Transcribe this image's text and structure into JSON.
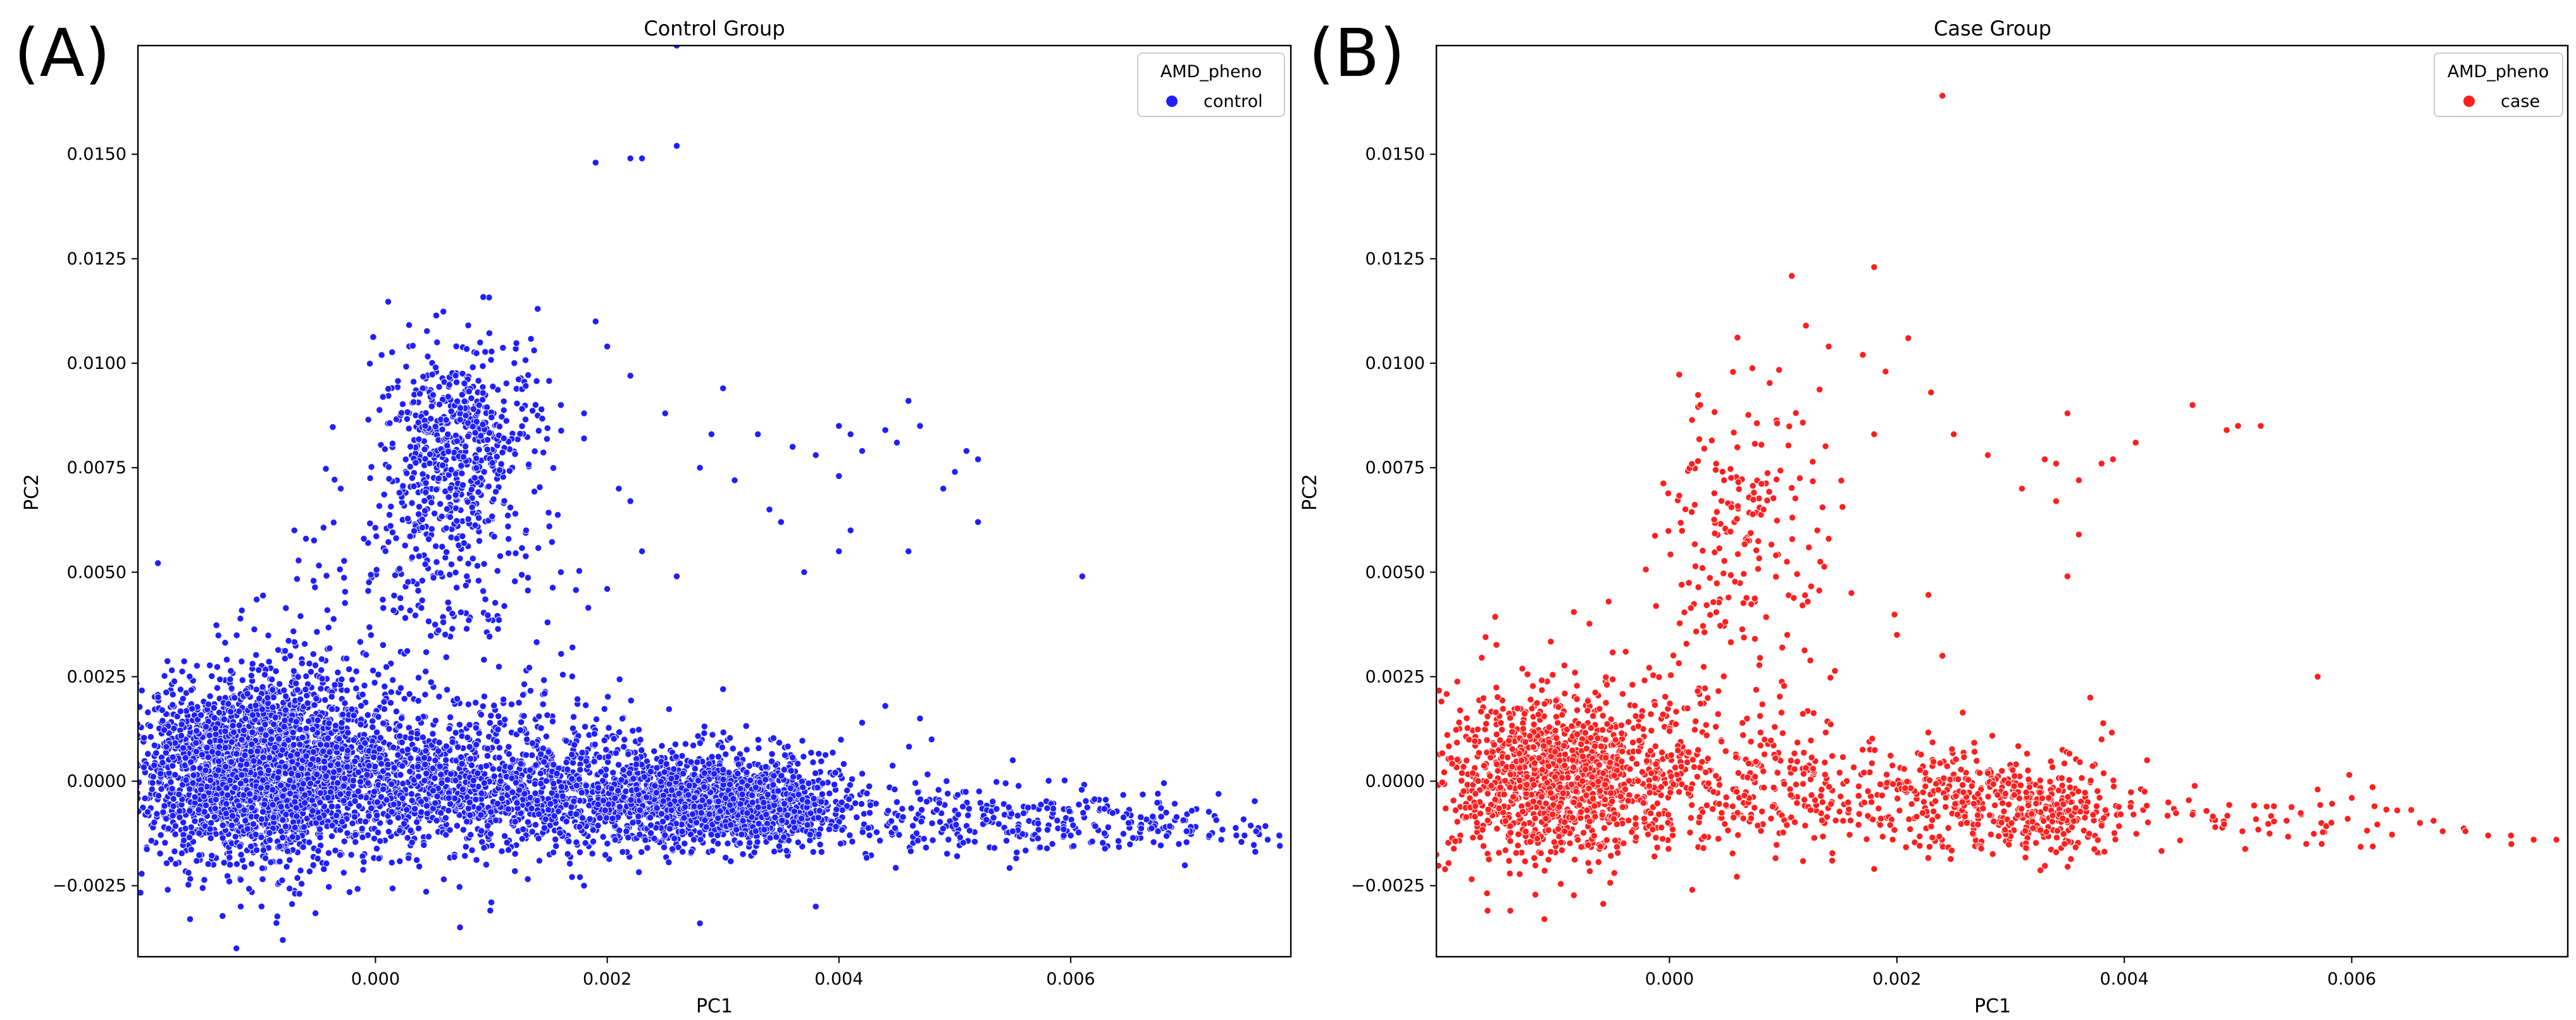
{
  "chart_data": [
    {
      "panel_label": "(A)",
      "type": "scatter",
      "title": "Control Group",
      "xlabel": "PC1",
      "ylabel": "PC2",
      "xlim": [
        -0.00205,
        0.0079
      ],
      "ylim": [
        -0.0042,
        0.0176
      ],
      "xticks": [
        0.0,
        0.002,
        0.004,
        0.006
      ],
      "xtick_labels": [
        "0.000",
        "0.002",
        "0.004",
        "0.006"
      ],
      "yticks": [
        -0.0025,
        0.0,
        0.0025,
        0.005,
        0.0075,
        0.01,
        0.0125,
        0.015
      ],
      "ytick_labels": [
        "−0.0025",
        "0.0000",
        "0.0025",
        "0.0050",
        "0.0075",
        "0.0100",
        "0.0125",
        "0.0150"
      ],
      "legend": {
        "title": "AMD_pheno",
        "position": "top-right",
        "entries": [
          {
            "label": "control",
            "color": "#1f1fff"
          }
        ]
      },
      "grid": false,
      "series": [
        {
          "name": "control",
          "color": "#1f1fff",
          "clusters": [
            {
              "cx": -0.001,
              "cy": 0.0003,
              "sx": 0.00055,
              "sy": 0.0011,
              "n": 2600
            },
            {
              "cx": 0.0007,
              "cy": 0.0,
              "sx": 0.0007,
              "sy": 0.0009,
              "n": 900
            },
            {
              "cx": 0.0024,
              "cy": -0.0004,
              "sx": 0.00075,
              "sy": 0.0006,
              "n": 1200
            },
            {
              "cx": 0.0033,
              "cy": -0.0006,
              "sx": 0.0004,
              "sy": 0.0005,
              "n": 650
            },
            {
              "cx": 0.0006,
              "cy": 0.0072,
              "sx": 0.00035,
              "sy": 0.0016,
              "n": 420
            },
            {
              "cx": 0.0008,
              "cy": 0.0086,
              "sx": 0.0003,
              "sy": 0.0009,
              "n": 260
            },
            {
              "cx": 0.0003,
              "cy": 0.0035,
              "sx": 0.0008,
              "sy": 0.0015,
              "n": 160
            },
            {
              "cx": 0.0052,
              "cy": -0.0009,
              "sx": 0.0009,
              "sy": 0.0004,
              "n": 260
            },
            {
              "cx": 0.0068,
              "cy": -0.0011,
              "sx": 0.0007,
              "sy": 0.00025,
              "n": 90
            }
          ],
          "points": [
            [
              0.0026,
              0.0176
            ],
            [
              0.0019,
              0.0148
            ],
            [
              0.0022,
              0.0149
            ],
            [
              0.0023,
              0.0149
            ],
            [
              0.0026,
              0.0152
            ],
            [
              0.0014,
              0.0113
            ],
            [
              0.003,
              0.0094
            ],
            [
              0.0033,
              0.0083
            ],
            [
              0.0046,
              0.0091
            ],
            [
              0.0045,
              0.0081
            ],
            [
              0.0044,
              0.0084
            ],
            [
              0.0047,
              0.0085
            ],
            [
              0.0051,
              0.0079
            ],
            [
              0.0052,
              0.0077
            ],
            [
              0.005,
              0.0074
            ],
            [
              0.0049,
              0.007
            ],
            [
              0.0052,
              0.0062
            ],
            [
              0.0061,
              0.0049
            ],
            [
              0.0046,
              0.0055
            ],
            [
              0.004,
              0.0085
            ],
            [
              0.0041,
              0.0083
            ],
            [
              0.0042,
              0.0079
            ],
            [
              0.004,
              0.0073
            ],
            [
              0.0038,
              0.0078
            ],
            [
              0.0036,
              0.008
            ],
            [
              0.0031,
              0.0072
            ],
            [
              0.0029,
              0.0083
            ],
            [
              0.0034,
              0.0065
            ],
            [
              0.0037,
              0.005
            ],
            [
              0.0035,
              0.0062
            ],
            [
              0.0041,
              0.006
            ],
            [
              0.004,
              0.0055
            ],
            [
              0.0028,
              0.0075
            ],
            [
              0.0025,
              0.0088
            ],
            [
              0.0022,
              0.0097
            ],
            [
              0.0021,
              0.007
            ],
            [
              0.0022,
              0.0067
            ],
            [
              0.0019,
              0.011
            ],
            [
              0.002,
              0.0104
            ],
            [
              0.0018,
              0.0088
            ],
            [
              0.0018,
              0.0082
            ],
            [
              0.0016,
              0.009
            ],
            [
              0.0013,
              0.006
            ],
            [
              0.0016,
              0.005
            ],
            [
              0.0023,
              0.0055
            ],
            [
              0.0026,
              0.0049
            ],
            [
              0.002,
              0.0046
            ],
            [
              0.0017,
              0.0032
            ],
            [
              -0.0007,
              0.006
            ],
            [
              -0.0006,
              0.0058
            ],
            [
              -0.0003,
              0.007
            ],
            [
              -0.0001,
              0.0058
            ],
            [
              0.0045,
              -0.0005
            ],
            [
              0.0055,
              -0.0012
            ],
            [
              0.006,
              -0.0013
            ],
            [
              0.0065,
              -0.001
            ],
            [
              0.007,
              -0.0012
            ],
            [
              0.0073,
              -0.0014
            ],
            [
              0.0076,
              -0.0012
            ],
            [
              0.0078,
              -0.0013
            ],
            [
              0.0077,
              -0.0014
            ],
            [
              0.0075,
              -0.0013
            ],
            [
              0.0028,
              -0.0034
            ],
            [
              0.0038,
              -0.003
            ],
            [
              0.001,
              -0.0029
            ],
            [
              -0.0008,
              -0.0038
            ],
            [
              -0.0012,
              -0.004
            ],
            [
              -0.0016,
              -0.0033
            ],
            [
              0.0018,
              -0.0025
            ],
            [
              0.003,
              0.0022
            ],
            [
              0.0042,
              0.0014
            ],
            [
              0.0044,
              0.0018
            ],
            [
              0.0047,
              0.0015
            ],
            [
              0.0055,
              0.0005
            ],
            [
              0.0048,
              0.001
            ]
          ]
        }
      ]
    },
    {
      "panel_label": "(B)",
      "type": "scatter",
      "title": "Case Group",
      "xlabel": "PC1",
      "ylabel": "PC2",
      "xlim": [
        -0.00205,
        0.0079
      ],
      "ylim": [
        -0.0042,
        0.0176
      ],
      "xticks": [
        0.0,
        0.002,
        0.004,
        0.006
      ],
      "xtick_labels": [
        "0.000",
        "0.002",
        "0.004",
        "0.006"
      ],
      "yticks": [
        -0.0025,
        0.0,
        0.0025,
        0.005,
        0.0075,
        0.01,
        0.0125,
        0.015
      ],
      "ytick_labels": [
        "−0.0025",
        "0.0000",
        "0.0025",
        "0.0050",
        "0.0075",
        "0.0100",
        "0.0125",
        "0.0150"
      ],
      "legend": {
        "title": "AMD_pheno",
        "position": "top-right",
        "entries": [
          {
            "label": "case",
            "color": "#ff1f1f"
          }
        ]
      },
      "grid": false,
      "series": [
        {
          "name": "case",
          "color": "#ff1f1f",
          "clusters": [
            {
              "cx": -0.001,
              "cy": 0.0001,
              "sx": 0.0005,
              "sy": 0.001,
              "n": 1150
            },
            {
              "cx": 0.0006,
              "cy": -0.0001,
              "sx": 0.0006,
              "sy": 0.0008,
              "n": 260
            },
            {
              "cx": 0.0024,
              "cy": -0.0004,
              "sx": 0.0007,
              "sy": 0.0006,
              "n": 330
            },
            {
              "cx": 0.0033,
              "cy": -0.0007,
              "sx": 0.0004,
              "sy": 0.0005,
              "n": 220
            },
            {
              "cx": 0.0006,
              "cy": 0.0065,
              "sx": 0.00035,
              "sy": 0.0018,
              "n": 170
            },
            {
              "cx": 0.0002,
              "cy": 0.0032,
              "sx": 0.0008,
              "sy": 0.0014,
              "n": 70
            },
            {
              "cx": 0.0052,
              "cy": -0.0009,
              "sx": 0.0009,
              "sy": 0.0004,
              "n": 60
            }
          ],
          "points": [
            [
              0.0024,
              0.0164
            ],
            [
              0.0018,
              0.0123
            ],
            [
              0.0021,
              0.0106
            ],
            [
              0.0012,
              0.0109
            ],
            [
              0.0014,
              0.0104
            ],
            [
              0.0017,
              0.0102
            ],
            [
              0.0019,
              0.0098
            ],
            [
              0.0023,
              0.0093
            ],
            [
              0.0046,
              0.009
            ],
            [
              0.0049,
              0.0084
            ],
            [
              0.005,
              0.0085
            ],
            [
              0.0052,
              0.0085
            ],
            [
              0.0035,
              0.0088
            ],
            [
              0.0033,
              0.0077
            ],
            [
              0.0034,
              0.0076
            ],
            [
              0.0038,
              0.0076
            ],
            [
              0.0039,
              0.0077
            ],
            [
              0.0041,
              0.0081
            ],
            [
              0.0036,
              0.0072
            ],
            [
              0.0034,
              0.0067
            ],
            [
              0.0036,
              0.0059
            ],
            [
              0.0035,
              0.0049
            ],
            [
              0.0025,
              0.0083
            ],
            [
              0.0028,
              0.0078
            ],
            [
              0.0031,
              0.007
            ],
            [
              0.0018,
              0.0083
            ],
            [
              0.0013,
              0.006
            ],
            [
              0.0014,
              0.0058
            ],
            [
              0.0016,
              0.0045
            ],
            [
              0.002,
              0.0035
            ],
            [
              0.0024,
              0.003
            ],
            [
              0.0037,
              0.002
            ],
            [
              0.0057,
              0.0025
            ],
            [
              0.0057,
              -0.0002
            ],
            [
              0.006,
              -0.0004
            ],
            [
              0.0062,
              -0.0006
            ],
            [
              0.0064,
              -0.0007
            ],
            [
              0.0066,
              -0.001
            ],
            [
              0.007,
              -0.0012
            ],
            [
              0.0072,
              -0.0013
            ],
            [
              0.0074,
              -0.0013
            ],
            [
              0.0076,
              -0.0014
            ],
            [
              0.0078,
              -0.0014
            ],
            [
              0.0068,
              -0.0012
            ],
            [
              0.0056,
              -0.0015
            ],
            [
              -0.0016,
              -0.0031
            ],
            [
              -0.0014,
              -0.0031
            ],
            [
              -0.0011,
              -0.0033
            ],
            [
              0.0002,
              -0.0026
            ],
            [
              0.0018,
              -0.0021
            ],
            [
              0.0034,
              -0.0017
            ],
            [
              0.0038,
              0.001
            ],
            [
              0.0042,
              0.0005
            ],
            [
              0.0046,
              -0.0008
            ],
            [
              0.0048,
              -0.0011
            ]
          ]
        }
      ]
    }
  ]
}
